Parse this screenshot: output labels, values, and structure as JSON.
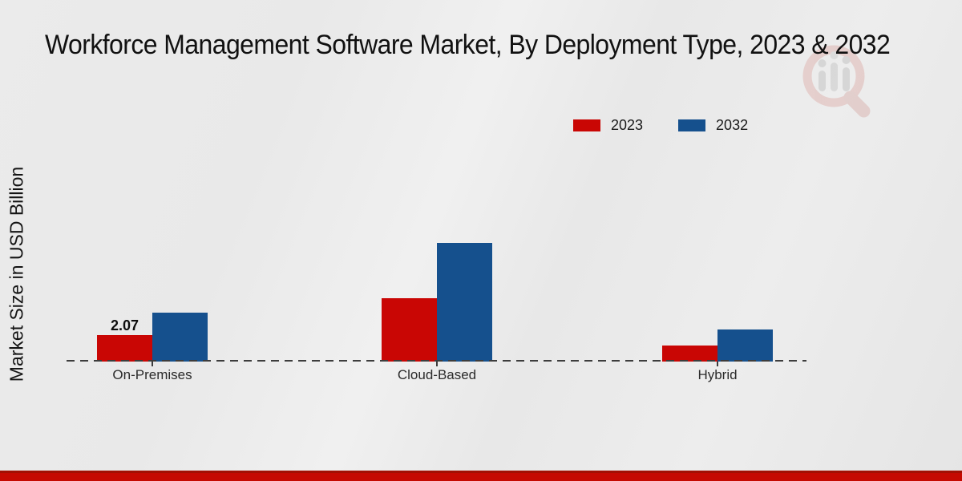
{
  "title": "Workforce Management Software Market, By Deployment Type, 2023 & 2032",
  "y_axis_label": "Market Size in USD Billion",
  "icons": {
    "watermark": "magnifier-bar-chart-logo"
  },
  "colors": {
    "series_2023": "#c90604",
    "series_2032": "#15508d",
    "footer": "#c50a02",
    "baseline": "#3d3d3d"
  },
  "chart_data": {
    "type": "bar",
    "categories": [
      "On-Premises",
      "Cloud-Based",
      "Hybrid"
    ],
    "series": [
      {
        "name": "2023",
        "color": "#c90604",
        "values": [
          2.07,
          4.9,
          1.25
        ]
      },
      {
        "name": "2032",
        "color": "#15508d",
        "values": [
          3.8,
          9.15,
          2.45
        ]
      }
    ],
    "bar_labels": [
      {
        "series_index": 0,
        "category_index": 0,
        "text": "2.07"
      }
    ],
    "title": "Workforce Management Software Market, By Deployment Type, 2023 & 2032",
    "xlabel": "",
    "ylabel": "Market Size in USD Billion",
    "ylim": [
      0,
      10
    ],
    "grid": false,
    "legend_position": "upper-right",
    "baseline_style": "dashed"
  }
}
